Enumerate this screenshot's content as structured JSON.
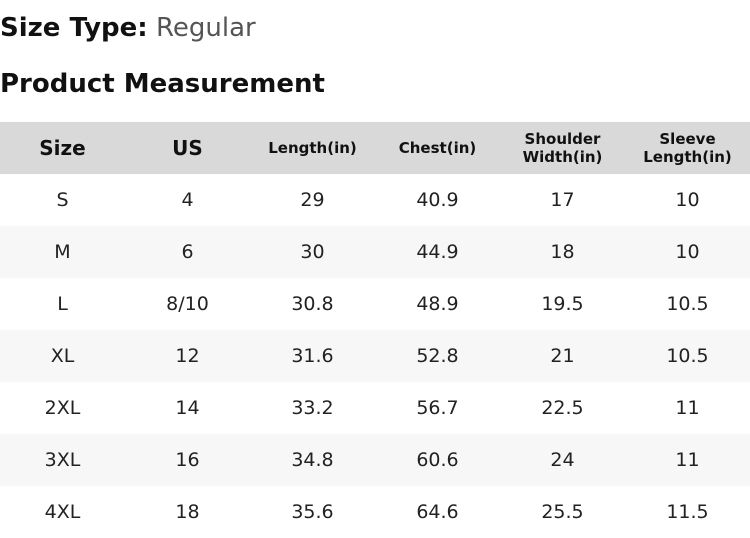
{
  "header": {
    "label": "Size Type:",
    "value": "Regular"
  },
  "section_title": "Product Measurement",
  "table": {
    "columns": [
      "Size",
      "US",
      "Length(in)",
      "Chest(in)",
      "Shoulder Width(in)",
      "Sleeve Length(in)"
    ],
    "rows": [
      [
        "S",
        "4",
        "29",
        "40.9",
        "17",
        "10"
      ],
      [
        "M",
        "6",
        "30",
        "44.9",
        "18",
        "10"
      ],
      [
        "L",
        "8/10",
        "30.8",
        "48.9",
        "19.5",
        "10.5"
      ],
      [
        "XL",
        "12",
        "31.6",
        "52.8",
        "21",
        "10.5"
      ],
      [
        "2XL",
        "14",
        "33.2",
        "56.7",
        "22.5",
        "11"
      ],
      [
        "3XL",
        "16",
        "34.8",
        "60.6",
        "24",
        "11"
      ],
      [
        "4XL",
        "18",
        "35.6",
        "64.6",
        "25.5",
        "11.5"
      ]
    ]
  }
}
